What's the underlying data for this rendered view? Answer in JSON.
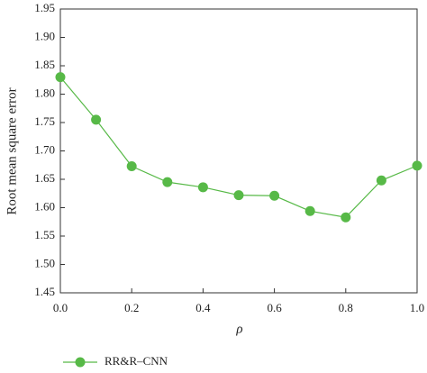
{
  "chart_data": {
    "type": "line",
    "x_label": "ρ",
    "y_label": "Root mean square error",
    "x": [
      0.0,
      0.1,
      0.2,
      0.3,
      0.4,
      0.5,
      0.6,
      0.7,
      0.8,
      0.9,
      1.0
    ],
    "series": [
      {
        "name": "RR&R–CNN",
        "color": "#57b947",
        "values": [
          1.83,
          1.755,
          1.673,
          1.645,
          1.636,
          1.622,
          1.621,
          1.594,
          1.583,
          1.648,
          1.674
        ]
      }
    ],
    "xlim": [
      0.0,
      1.0
    ],
    "xticks": [
      {
        "value": 0.0,
        "label": "0.0"
      },
      0.2,
      0.4,
      0.6,
      0.8,
      {
        "value": 1.0,
        "label": "1.0"
      }
    ],
    "ylim": [
      1.45,
      1.95
    ],
    "yticks": [
      1.45,
      {
        "value": 1.5,
        "label": "1.50"
      },
      1.55,
      {
        "value": 1.6,
        "label": "1.60"
      },
      1.65,
      {
        "value": 1.7,
        "label": "1.70"
      },
      1.75,
      {
        "value": 1.8,
        "label": "1.80"
      },
      1.85,
      {
        "value": 1.9,
        "label": "1.90"
      },
      1.95
    ],
    "legend": "bottom-left"
  }
}
